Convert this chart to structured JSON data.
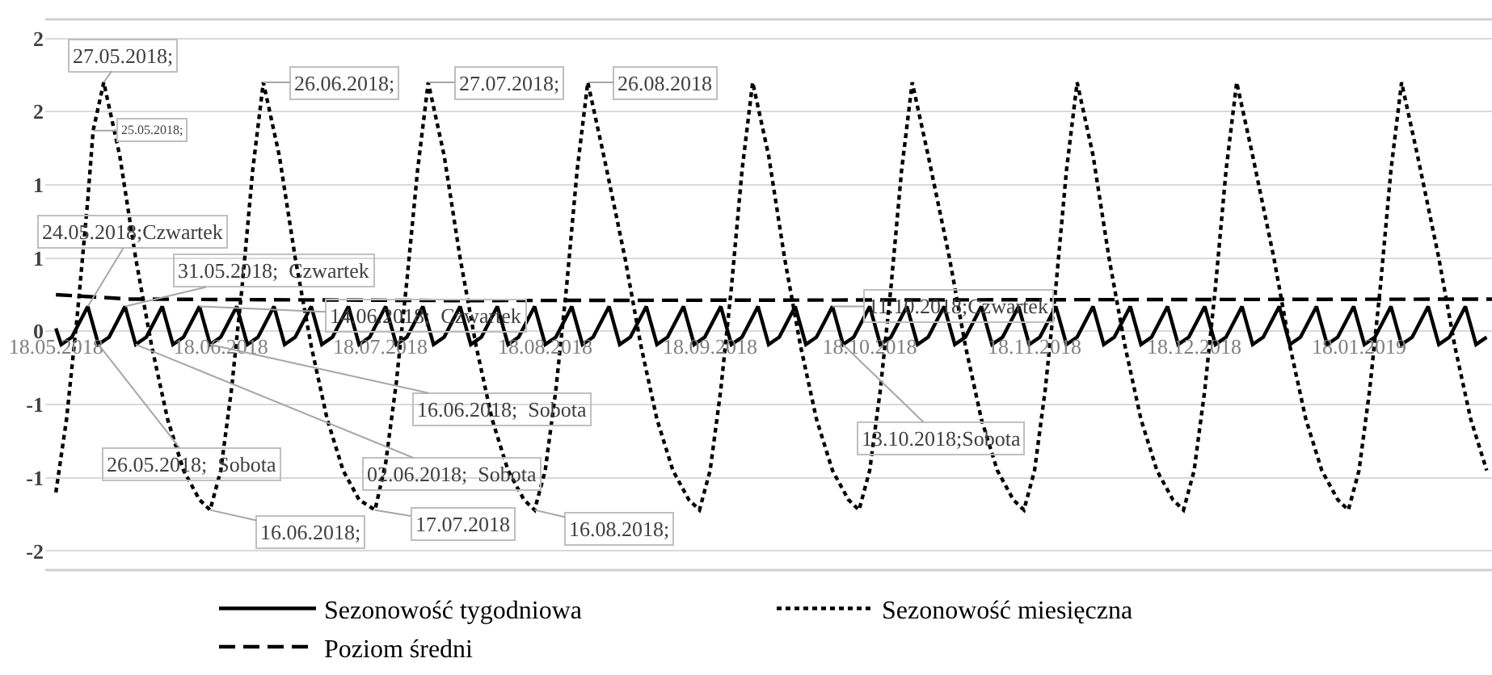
{
  "chart_data": {
    "type": "line",
    "xlim": [
      "2018-05-16",
      "2019-02-12"
    ],
    "xticks": [
      {
        "value": "2018-05-18",
        "label": "18.05.2018"
      },
      {
        "value": "2018-06-18",
        "label": "18.06.2018"
      },
      {
        "value": "2018-07-18",
        "label": "18.07.2018"
      },
      {
        "value": "2018-08-18",
        "label": "18.08.2018"
      },
      {
        "value": "2018-09-18",
        "label": "18.09.2018"
      },
      {
        "value": "2018-10-18",
        "label": "18.10.2018"
      },
      {
        "value": "2018-11-18",
        "label": "18.11.2018"
      },
      {
        "value": "2018-12-18",
        "label": "18.12.2018"
      },
      {
        "value": "2019-01-18",
        "label": "18.01.2019"
      }
    ],
    "ylim": [
      -1.63,
      2.13
    ],
    "yticks": [
      {
        "value": 2.0,
        "label": "2"
      },
      {
        "value": 1.5,
        "label": "2"
      },
      {
        "value": 1.0,
        "label": "1"
      },
      {
        "value": 0.5,
        "label": "1"
      },
      0,
      {
        "value": -0.5,
        "label": "-1"
      },
      {
        "value": -1.0,
        "label": "-1"
      },
      {
        "value": -1.5,
        "label": "-2"
      }
    ],
    "grid": "y",
    "legend": "bottom",
    "series": [
      {
        "name": "Sezonowość tygodniowa",
        "color": "#000000",
        "line_style": "solid",
        "x": [
          "2018-05-18",
          "2018-05-19",
          "2018-05-21",
          "2018-05-24",
          "2018-05-26",
          "2018-05-28",
          "2018-05-31",
          "2018-06-02",
          "2018-06-04",
          "2018-06-07",
          "2018-06-09",
          "2018-06-11",
          "2018-06-14",
          "2018-06-16",
          "2018-06-18",
          "2018-06-21",
          "2018-06-23",
          "2018-06-25",
          "2018-06-28",
          "2018-06-30",
          "2018-07-02",
          "2018-07-05",
          "2018-07-07",
          "2018-07-09",
          "2018-07-12",
          "2018-07-14",
          "2018-07-16",
          "2018-07-19",
          "2018-07-21",
          "2018-07-23",
          "2018-07-26",
          "2018-07-28",
          "2018-07-30",
          "2018-08-02",
          "2018-08-04",
          "2018-08-06",
          "2018-08-09",
          "2018-08-11",
          "2018-08-13",
          "2018-08-16",
          "2018-08-18",
          "2018-08-20",
          "2018-08-23",
          "2018-08-25",
          "2018-08-27",
          "2018-08-30",
          "2018-09-01",
          "2018-09-03",
          "2018-09-06",
          "2018-09-08",
          "2018-09-10",
          "2018-09-13",
          "2018-09-15",
          "2018-09-17",
          "2018-09-20",
          "2018-09-22",
          "2018-09-24",
          "2018-09-27",
          "2018-09-29",
          "2018-10-01",
          "2018-10-04",
          "2018-10-06",
          "2018-10-08",
          "2018-10-11",
          "2018-10-13",
          "2018-10-15",
          "2018-10-18",
          "2018-10-20",
          "2018-10-22",
          "2018-10-25",
          "2018-10-27",
          "2018-10-29",
          "2018-11-01",
          "2018-11-03",
          "2018-11-05",
          "2018-11-08",
          "2018-11-10",
          "2018-11-12",
          "2018-11-15",
          "2018-11-17",
          "2018-11-19",
          "2018-11-22",
          "2018-11-24",
          "2018-11-26",
          "2018-11-29",
          "2018-12-01",
          "2018-12-03",
          "2018-12-06",
          "2018-12-08",
          "2018-12-10",
          "2018-12-13",
          "2018-12-15",
          "2018-12-17",
          "2018-12-20",
          "2018-12-22",
          "2018-12-24",
          "2018-12-27",
          "2018-12-29",
          "2018-12-31",
          "2019-01-03",
          "2019-01-05",
          "2019-01-07",
          "2019-01-10",
          "2019-01-12",
          "2019-01-14",
          "2019-01-17",
          "2019-01-19",
          "2019-01-21",
          "2019-01-24",
          "2019-01-26",
          "2019-01-28",
          "2019-01-31",
          "2019-02-02",
          "2019-02-04",
          "2019-02-07",
          "2019-02-09",
          "2019-02-11"
        ],
        "values": [
          0.02,
          -0.09,
          -0.04,
          0.17,
          -0.09,
          -0.04,
          0.17,
          -0.09,
          -0.04,
          0.17,
          -0.09,
          -0.04,
          0.17,
          -0.09,
          -0.04,
          0.17,
          -0.09,
          -0.04,
          0.17,
          -0.09,
          -0.04,
          0.17,
          -0.09,
          -0.04,
          0.17,
          -0.09,
          -0.04,
          0.17,
          -0.09,
          -0.04,
          0.17,
          -0.09,
          -0.04,
          0.17,
          -0.09,
          -0.04,
          0.17,
          -0.09,
          -0.04,
          0.17,
          -0.09,
          -0.04,
          0.17,
          -0.09,
          -0.04,
          0.17,
          -0.09,
          -0.04,
          0.17,
          -0.09,
          -0.04,
          0.17,
          -0.09,
          -0.04,
          0.17,
          -0.09,
          -0.04,
          0.17,
          -0.09,
          -0.04,
          0.17,
          -0.09,
          -0.04,
          0.17,
          -0.09,
          -0.04,
          0.17,
          -0.09,
          -0.04,
          0.17,
          -0.09,
          -0.04,
          0.17,
          -0.09,
          -0.04,
          0.17,
          -0.09,
          -0.04,
          0.17,
          -0.09,
          -0.04,
          0.17,
          -0.09,
          -0.04,
          0.17,
          -0.09,
          -0.04,
          0.17,
          -0.09,
          -0.04,
          0.17,
          -0.09,
          -0.04,
          0.17,
          -0.09,
          -0.04,
          0.17,
          -0.09,
          -0.04,
          0.17,
          -0.09,
          -0.04,
          0.17,
          -0.09,
          -0.04,
          0.17,
          -0.09,
          -0.04,
          0.17,
          -0.09,
          -0.04,
          0.17,
          -0.09,
          -0.04,
          0.17,
          -0.09,
          -0.04
        ]
      },
      {
        "name": "Sezonowość miesięczna",
        "color": "#000000",
        "line_style": "dotted",
        "x": [
          "2018-05-18",
          "2018-05-20",
          "2018-05-22",
          "2018-05-24",
          "2018-05-25",
          "2018-05-27",
          "2018-05-30",
          "2018-06-02",
          "2018-06-05",
          "2018-06-08",
          "2018-06-11",
          "2018-06-14",
          "2018-06-16",
          "2018-06-18",
          "2018-06-20",
          "2018-06-22",
          "2018-06-24",
          "2018-06-26",
          "2018-06-29",
          "2018-07-02",
          "2018-07-05",
          "2018-07-08",
          "2018-07-11",
          "2018-07-14",
          "2018-07-17",
          "2018-07-19",
          "2018-07-21",
          "2018-07-23",
          "2018-07-25",
          "2018-07-27",
          "2018-07-30",
          "2018-08-02",
          "2018-08-05",
          "2018-08-08",
          "2018-08-11",
          "2018-08-14",
          "2018-08-16",
          "2018-08-18",
          "2018-08-20",
          "2018-08-22",
          "2018-08-24",
          "2018-08-26",
          "2018-08-29",
          "2018-09-02",
          "2018-09-05",
          "2018-09-08",
          "2018-09-11",
          "2018-09-14",
          "2018-09-16",
          "2018-09-18",
          "2018-09-20",
          "2018-09-22",
          "2018-09-24",
          "2018-09-26",
          "2018-09-29",
          "2018-10-02",
          "2018-10-05",
          "2018-10-08",
          "2018-10-11",
          "2018-10-14",
          "2018-10-16",
          "2018-10-18",
          "2018-10-20",
          "2018-10-22",
          "2018-10-24",
          "2018-10-26",
          "2018-10-29",
          "2018-11-02",
          "2018-11-05",
          "2018-11-08",
          "2018-11-11",
          "2018-11-14",
          "2018-11-16",
          "2018-11-18",
          "2018-11-20",
          "2018-11-22",
          "2018-11-24",
          "2018-11-26",
          "2018-11-29",
          "2018-12-02",
          "2018-12-05",
          "2018-12-08",
          "2018-12-11",
          "2018-12-14",
          "2018-12-16",
          "2018-12-18",
          "2018-12-20",
          "2018-12-22",
          "2018-12-24",
          "2018-12-26",
          "2018-12-29",
          "2019-01-02",
          "2019-01-05",
          "2019-01-08",
          "2019-01-11",
          "2019-01-14",
          "2019-01-16",
          "2019-01-18",
          "2019-01-20",
          "2019-01-22",
          "2019-01-24",
          "2019-01-26",
          "2019-01-29",
          "2019-02-02",
          "2019-02-05",
          "2019-02-08",
          "2019-02-11"
        ],
        "values": [
          -1.1,
          -0.6,
          0.1,
          0.9,
          1.37,
          1.7,
          1.2,
          0.5,
          -0.1,
          -0.6,
          -0.95,
          -1.15,
          -1.22,
          -0.95,
          -0.4,
          0.3,
          1.1,
          1.7,
          1.2,
          0.5,
          -0.1,
          -0.6,
          -0.95,
          -1.15,
          -1.22,
          -0.9,
          -0.35,
          0.35,
          1.1,
          1.7,
          1.2,
          0.5,
          -0.1,
          -0.6,
          -0.95,
          -1.15,
          -1.22,
          -0.95,
          -0.4,
          0.3,
          1.1,
          1.7,
          1.2,
          0.5,
          -0.1,
          -0.6,
          -0.95,
          -1.15,
          -1.22,
          -0.95,
          -0.4,
          0.3,
          1.1,
          1.7,
          1.2,
          0.5,
          -0.1,
          -0.6,
          -0.95,
          -1.15,
          -1.22,
          -0.95,
          -0.4,
          0.3,
          1.1,
          1.7,
          1.2,
          0.5,
          -0.1,
          -0.6,
          -0.95,
          -1.15,
          -1.22,
          -0.95,
          -0.4,
          0.3,
          1.1,
          1.7,
          1.2,
          0.5,
          -0.1,
          -0.6,
          -0.95,
          -1.15,
          -1.22,
          -0.95,
          -0.4,
          0.3,
          1.1,
          1.7,
          1.2,
          0.5,
          -0.1,
          -0.6,
          -0.95,
          -1.15,
          -1.22,
          -0.95,
          -0.4,
          0.3,
          1.1,
          1.7,
          1.2,
          0.5,
          -0.1,
          -0.6,
          -0.95
        ]
      },
      {
        "name": "Poziom średni",
        "color": "#000000",
        "line_style": "dashed",
        "x": [
          "2018-05-18",
          "2018-06-01",
          "2018-08-01",
          "2019-02-12"
        ],
        "values": [
          0.25,
          0.22,
          0.21,
          0.22
        ]
      }
    ],
    "annotations": [
      {
        "text": "27.05.2018;",
        "x": "2018-05-27",
        "y": 1.7
      },
      {
        "text": "25.05.2018;",
        "x": "2018-05-25",
        "y": 1.37
      },
      {
        "text": "26.06.2018;",
        "x": "2018-06-26",
        "y": 1.7
      },
      {
        "text": "27.07.2018;",
        "x": "2018-07-27",
        "y": 1.7
      },
      {
        "text": "26.08.2018",
        "x": "2018-08-26",
        "y": 1.7
      },
      {
        "text": "24.05.2018;Czwartek",
        "x": "2018-05-24",
        "y": 0.17
      },
      {
        "text": "31.05.2018;  Czwartek",
        "x": "2018-05-31",
        "y": 0.17
      },
      {
        "text": "14.06.2018;  Czwartek",
        "x": "2018-06-14",
        "y": 0.17
      },
      {
        "text": "11.10.2018;Czwartek",
        "x": "2018-10-11",
        "y": 0.17
      },
      {
        "text": "26.05.2018;  Sobota",
        "x": "2018-05-26",
        "y": -0.09
      },
      {
        "text": "02.06.2018;  Sobota",
        "x": "2018-06-02",
        "y": -0.09
      },
      {
        "text": "16.06.2018;  Sobota",
        "x": "2018-06-16",
        "y": -0.09
      },
      {
        "text": "13.10.2018;Sobota",
        "x": "2018-10-13",
        "y": -0.09
      },
      {
        "text": "16.06.2018;",
        "x": "2018-06-16",
        "y": -1.22
      },
      {
        "text": "17.07.2018",
        "x": "2018-07-17",
        "y": -1.22
      },
      {
        "text": "16.08.2018;",
        "x": "2018-08-16",
        "y": -1.22
      }
    ]
  }
}
